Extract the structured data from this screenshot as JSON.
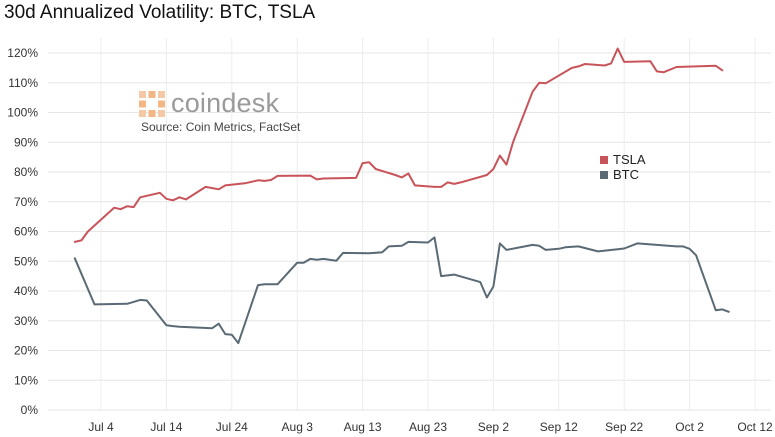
{
  "chart_data": {
    "type": "line",
    "title": "30d Annualized Volatility: BTC, TSLA",
    "source": "Source: Coin Metrics, FactSet",
    "brand": "coindesk",
    "ylim": [
      0,
      125
    ],
    "y_ticks": [
      0,
      10,
      20,
      30,
      40,
      50,
      60,
      70,
      80,
      90,
      100,
      110,
      120
    ],
    "y_tick_labels": [
      "0%",
      "10%",
      "20%",
      "30%",
      "40%",
      "50%",
      "60%",
      "70%",
      "80%",
      "90%",
      "100%",
      "110%",
      "120%"
    ],
    "x_start": "2021-06-29",
    "x_end": "2021-10-13",
    "x_ticks": [
      "2021-07-04",
      "2021-07-14",
      "2021-07-24",
      "2021-08-03",
      "2021-08-13",
      "2021-08-23",
      "2021-09-02",
      "2021-09-12",
      "2021-09-22",
      "2021-10-02",
      "2021-10-12"
    ],
    "x_tick_labels": [
      "Jul 4",
      "Jul 14",
      "Jul 24",
      "Aug 3",
      "Aug 13",
      "Aug 23",
      "Sep 2",
      "Sep 12",
      "Sep 22",
      "Oct 2",
      "Oct 12"
    ],
    "grid": true,
    "legend_position": "right",
    "series": [
      {
        "name": "TSLA",
        "color": "#c8545a",
        "points": [
          [
            "2021-06-30",
            56.5
          ],
          [
            "2021-07-01",
            57
          ],
          [
            "2021-07-02",
            60
          ],
          [
            "2021-07-06",
            68
          ],
          [
            "2021-07-07",
            67.5
          ],
          [
            "2021-07-08",
            68.5
          ],
          [
            "2021-07-09",
            68.2
          ],
          [
            "2021-07-10",
            71.5
          ],
          [
            "2021-07-13",
            73
          ],
          [
            "2021-07-14",
            71
          ],
          [
            "2021-07-15",
            70.5
          ],
          [
            "2021-07-16",
            71.5
          ],
          [
            "2021-07-17",
            70.8
          ],
          [
            "2021-07-20",
            75
          ],
          [
            "2021-07-22",
            74.2
          ],
          [
            "2021-07-23",
            75.5
          ],
          [
            "2021-07-26",
            76.2
          ],
          [
            "2021-07-28",
            77.2
          ],
          [
            "2021-07-29",
            77
          ],
          [
            "2021-07-30",
            77.3
          ],
          [
            "2021-07-31",
            78.7
          ],
          [
            "2021-08-05",
            78.8
          ],
          [
            "2021-08-06",
            77.5
          ],
          [
            "2021-08-07",
            77.8
          ],
          [
            "2021-08-12",
            78
          ],
          [
            "2021-08-13",
            83
          ],
          [
            "2021-08-14",
            83.3
          ],
          [
            "2021-08-15",
            81
          ],
          [
            "2021-08-18",
            79
          ],
          [
            "2021-08-19",
            78.2
          ],
          [
            "2021-08-20",
            79.5
          ],
          [
            "2021-08-21",
            75.5
          ],
          [
            "2021-08-24",
            75
          ],
          [
            "2021-08-25",
            75
          ],
          [
            "2021-08-26",
            76.5
          ],
          [
            "2021-08-27",
            76
          ],
          [
            "2021-08-28",
            76.5
          ],
          [
            "2021-09-01",
            79
          ],
          [
            "2021-09-02",
            81
          ],
          [
            "2021-09-03",
            85.5
          ],
          [
            "2021-09-04",
            82.5
          ],
          [
            "2021-09-05",
            90
          ],
          [
            "2021-09-08",
            107
          ],
          [
            "2021-09-09",
            110
          ],
          [
            "2021-09-10",
            109.8
          ],
          [
            "2021-09-14",
            115
          ],
          [
            "2021-09-15",
            115.5
          ],
          [
            "2021-09-16",
            116.3
          ],
          [
            "2021-09-19",
            115.8
          ],
          [
            "2021-09-20",
            116.5
          ],
          [
            "2021-09-21",
            121.5
          ],
          [
            "2021-09-22",
            117
          ],
          [
            "2021-09-26",
            117.2
          ],
          [
            "2021-09-27",
            113.8
          ],
          [
            "2021-09-28",
            113.5
          ],
          [
            "2021-09-30",
            115.3
          ],
          [
            "2021-10-06",
            115.7
          ],
          [
            "2021-10-07",
            114.2
          ]
        ]
      },
      {
        "name": "BTC",
        "color": "#5a6a74",
        "points": [
          [
            "2021-06-30",
            51
          ],
          [
            "2021-07-03",
            35.5
          ],
          [
            "2021-07-08",
            35.7
          ],
          [
            "2021-07-10",
            37
          ],
          [
            "2021-07-11",
            36.8
          ],
          [
            "2021-07-14",
            28.5
          ],
          [
            "2021-07-15",
            28.2
          ],
          [
            "2021-07-16",
            28
          ],
          [
            "2021-07-21",
            27.5
          ],
          [
            "2021-07-22",
            29
          ],
          [
            "2021-07-23",
            25.5
          ],
          [
            "2021-07-24",
            25.3
          ],
          [
            "2021-07-25",
            22.5
          ],
          [
            "2021-07-28",
            42
          ],
          [
            "2021-07-29",
            42.3
          ],
          [
            "2021-07-31",
            42.3
          ],
          [
            "2021-08-03",
            49.5
          ],
          [
            "2021-08-04",
            49.5
          ],
          [
            "2021-08-05",
            50.8
          ],
          [
            "2021-08-06",
            50.5
          ],
          [
            "2021-08-07",
            50.8
          ],
          [
            "2021-08-09",
            50.2
          ],
          [
            "2021-08-10",
            52.8
          ],
          [
            "2021-08-14",
            52.7
          ],
          [
            "2021-08-16",
            53
          ],
          [
            "2021-08-17",
            55
          ],
          [
            "2021-08-19",
            55.2
          ],
          [
            "2021-08-20",
            56.5
          ],
          [
            "2021-08-23",
            56.3
          ],
          [
            "2021-08-24",
            58
          ],
          [
            "2021-08-25",
            45
          ],
          [
            "2021-08-27",
            45.5
          ],
          [
            "2021-08-31",
            43
          ],
          [
            "2021-09-01",
            37.8
          ],
          [
            "2021-09-02",
            41.5
          ],
          [
            "2021-09-03",
            56
          ],
          [
            "2021-09-04",
            53.8
          ],
          [
            "2021-09-08",
            55.5
          ],
          [
            "2021-09-09",
            55.2
          ],
          [
            "2021-09-10",
            53.8
          ],
          [
            "2021-09-12",
            54.2
          ],
          [
            "2021-09-13",
            54.7
          ],
          [
            "2021-09-15",
            55
          ],
          [
            "2021-09-18",
            53.3
          ],
          [
            "2021-09-21",
            54
          ],
          [
            "2021-09-22",
            54.3
          ],
          [
            "2021-09-24",
            56
          ],
          [
            "2021-09-30",
            55
          ],
          [
            "2021-10-01",
            55
          ],
          [
            "2021-10-02",
            54.2
          ],
          [
            "2021-10-03",
            52
          ],
          [
            "2021-10-06",
            33.5
          ],
          [
            "2021-10-07",
            33.8
          ],
          [
            "2021-10-08",
            33
          ]
        ]
      }
    ]
  }
}
